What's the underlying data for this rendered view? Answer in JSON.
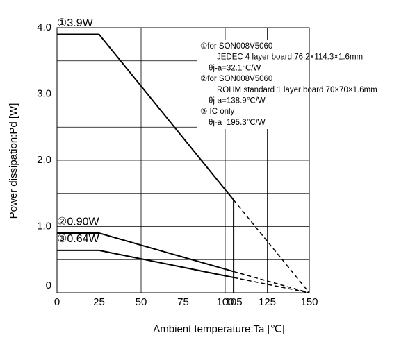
{
  "chart_data": {
    "type": "line",
    "x_label": "Ambient temperature:Ta [℃]",
    "y_label": "Power dissipation:Pd [W]",
    "x": [
      0,
      25,
      105,
      150
    ],
    "series": [
      {
        "name": "①3.9W",
        "color": "#000000",
        "values": [
          3.9,
          3.9,
          1.4,
          0
        ]
      },
      {
        "name": "②0.90W",
        "color": "#000000",
        "values": [
          0.9,
          0.9,
          0.32,
          0
        ]
      },
      {
        "name": "③0.64W",
        "color": "#000000",
        "values": [
          0.64,
          0.64,
          0.23,
          0
        ]
      }
    ],
    "notes": [
      "①for SON008V5060",
      "JEDEC 4 layer board 76.2×114.3×1.6mm",
      "θj-a=32.1℃/W",
      "②for SON008V5060",
      "ROHM standard 1 layer board 70×70×1.6mm",
      "θj-a=138.9℃/W",
      "③ IC only",
      "θj-a=195.3℃/W"
    ],
    "xlim": [
      0,
      150
    ],
    "ylim": [
      0,
      4
    ],
    "xticks": [
      0,
      25,
      50,
      75,
      100,
      105,
      125,
      150
    ],
    "yticks": [
      0,
      {
        "value": 1,
        "label": "1.0"
      },
      {
        "value": 2,
        "label": "2.0"
      },
      {
        "value": 3,
        "label": "3.0"
      },
      {
        "value": 4,
        "label": "4.0"
      }
    ],
    "x_grid": [
      0,
      25,
      50,
      75,
      100,
      125,
      150
    ],
    "y_grid": [
      0.5,
      1,
      1.5,
      2,
      2.5,
      3,
      3.5
    ],
    "grid": true
  }
}
